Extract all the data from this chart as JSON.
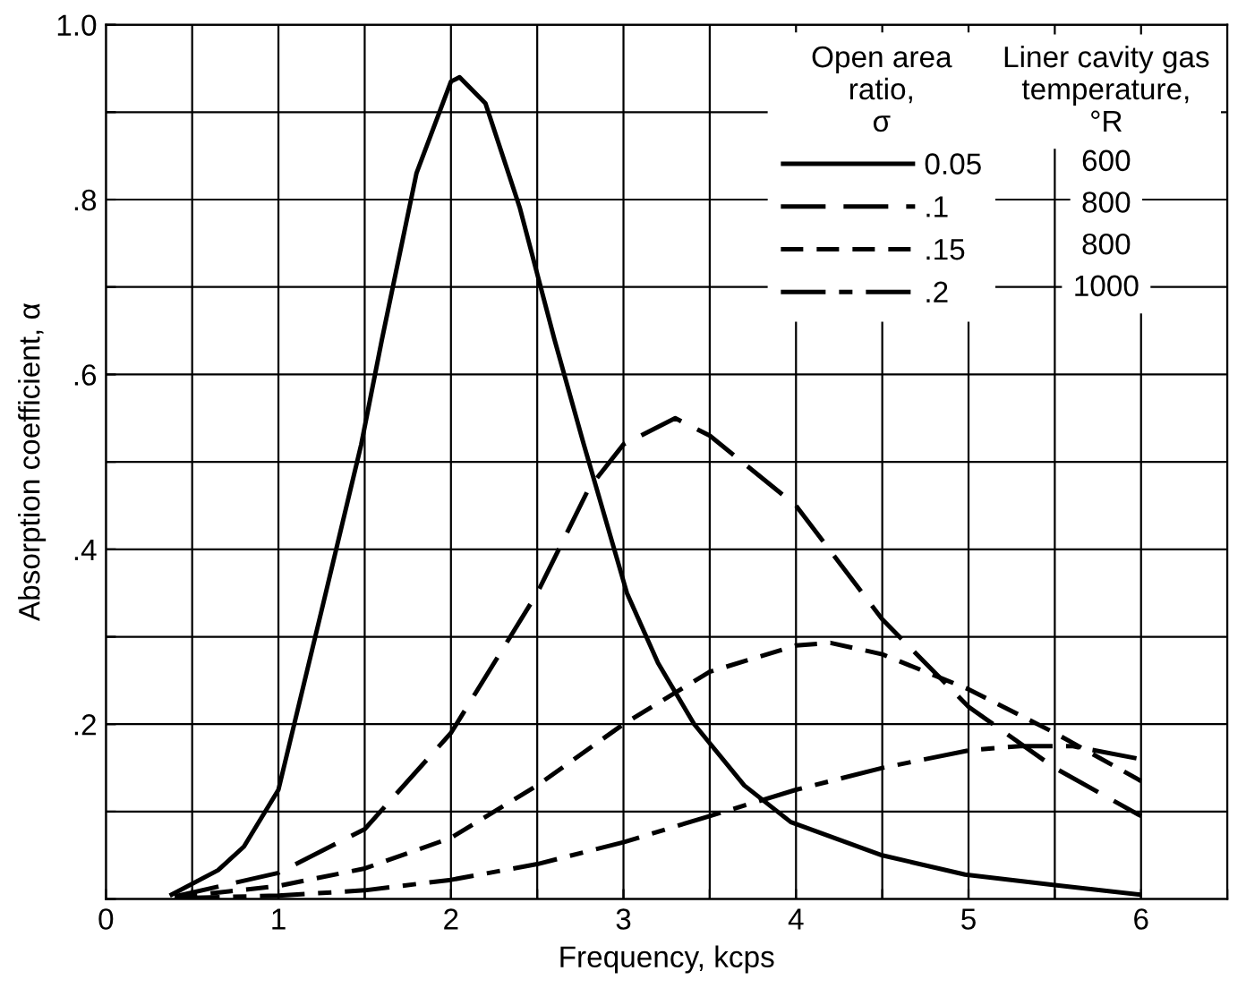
{
  "chart_data": {
    "type": "line",
    "xlabel": "Frequency, kcps",
    "ylabel": "Absorption coefficient, α",
    "legend_title": "Open area\nratio,\nσ",
    "annotations": [
      "Liner cavity gas\ntemperature,\n°R",
      "600",
      "800",
      "800",
      "1000"
    ],
    "xlim": [
      0,
      6.5
    ],
    "ylim": [
      0,
      1.0
    ],
    "xticks": [
      0,
      {
        "value": 0.5,
        "label": null
      },
      1,
      {
        "value": 1.5,
        "label": null
      },
      2,
      {
        "value": 2.5,
        "label": null
      },
      3,
      {
        "value": 3.5,
        "label": null
      },
      4,
      {
        "value": 4.5,
        "label": null
      },
      5,
      {
        "value": 5.5,
        "label": null
      },
      6,
      {
        "value": 6.5,
        "label": null
      }
    ],
    "yticks": [
      {
        "value": 0,
        "label": null
      },
      {
        "value": 0.1,
        "label": null
      },
      {
        "value": 0.2,
        "label": ".2"
      },
      {
        "value": 0.3,
        "label": null
      },
      {
        "value": 0.4,
        "label": ".4"
      },
      {
        "value": 0.5,
        "label": null
      },
      {
        "value": 0.6,
        "label": ".6"
      },
      {
        "value": 0.7,
        "label": null
      },
      {
        "value": 0.8,
        "label": ".8"
      },
      {
        "value": 0.9,
        "label": null
      },
      {
        "value": 1.0,
        "label": "1.0"
      }
    ],
    "grid": true,
    "legend": "top right",
    "marker": "none",
    "series": [
      {
        "name": "0.05",
        "color": "#000000",
        "line_style": "solid",
        "x": [
          0.37,
          0.65,
          0.8,
          1.0,
          1.25,
          1.48,
          1.6,
          1.8,
          2.0,
          2.05,
          2.2,
          2.4,
          2.6,
          2.77,
          3.02,
          3.2,
          3.41,
          3.7,
          3.97,
          4.5,
          4.98,
          5.5,
          6.0
        ],
        "values": [
          0.004,
          0.033,
          0.06,
          0.125,
          0.33,
          0.52,
          0.64,
          0.83,
          0.935,
          0.94,
          0.91,
          0.79,
          0.64,
          0.52,
          0.35,
          0.27,
          0.2,
          0.13,
          0.088,
          0.05,
          0.028,
          0.016,
          0.005
        ]
      },
      {
        "name": ".1",
        "color": "#000000",
        "line_style": "dashed",
        "x": [
          0.4,
          1.0,
          1.5,
          2.0,
          2.5,
          2.8,
          3.0,
          3.3,
          3.5,
          4.0,
          4.5,
          5.0,
          5.5,
          6.0
        ],
        "values": [
          0.003,
          0.03,
          0.08,
          0.19,
          0.35,
          0.47,
          0.52,
          0.55,
          0.53,
          0.45,
          0.32,
          0.22,
          0.15,
          0.095
        ]
      },
      {
        "name": ".15",
        "color": "#000000",
        "line_style": "short_dashed",
        "x": [
          0.4,
          1.0,
          1.5,
          2.0,
          2.5,
          3.0,
          3.5,
          4.0,
          4.2,
          4.5,
          5.0,
          5.5,
          6.0
        ],
        "values": [
          0.002,
          0.015,
          0.035,
          0.07,
          0.13,
          0.2,
          0.26,
          0.29,
          0.293,
          0.28,
          0.24,
          0.19,
          0.135
        ]
      },
      {
        "name": ".2",
        "color": "#000000",
        "line_style": "dashdot",
        "x": [
          0.4,
          1.0,
          1.5,
          2.0,
          2.5,
          3.0,
          3.5,
          4.0,
          4.5,
          5.0,
          5.3,
          5.6,
          6.0
        ],
        "values": [
          0.001,
          0.004,
          0.01,
          0.022,
          0.04,
          0.065,
          0.095,
          0.125,
          0.15,
          0.17,
          0.175,
          0.175,
          0.16
        ]
      }
    ]
  }
}
